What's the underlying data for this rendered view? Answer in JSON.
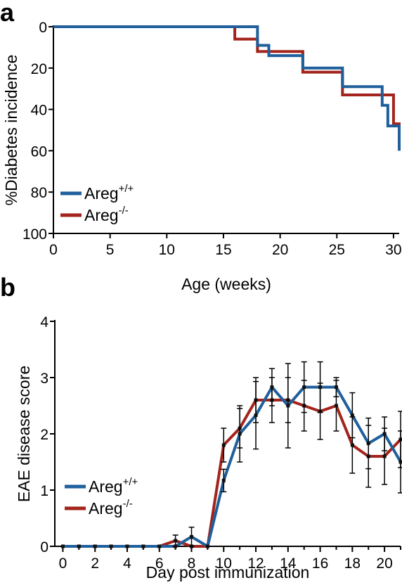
{
  "panels": {
    "a_letter": "a",
    "b_letter": "b"
  },
  "colors": {
    "wt": "#1f5f9c",
    "ko": "#a3241c",
    "axis": "#000000"
  },
  "chart_data": [
    {
      "type": "line",
      "step": true,
      "xlabel": "Age (weeks)",
      "ylabel": "%Diabetes incidence",
      "xlim": [
        0,
        30.5
      ],
      "ylim": [
        100,
        0
      ],
      "y_inverted": true,
      "x_ticks": [
        0,
        5,
        10,
        15,
        20,
        25,
        30
      ],
      "y_ticks": [
        0,
        20,
        40,
        60,
        80,
        100
      ],
      "legend": {
        "placement": "bottom-left",
        "entries": [
          {
            "base": "Areg",
            "sup": "+/+"
          },
          {
            "base": "Areg",
            "sup": "-/-"
          }
        ]
      },
      "series": [
        {
          "name": "Areg+/+",
          "color_key": "wt",
          "x": [
            0,
            18,
            18.5,
            19,
            22,
            25.5,
            29,
            29.5,
            30.5
          ],
          "y": [
            0,
            9,
            9,
            14,
            20,
            29,
            38,
            48,
            60
          ]
        },
        {
          "name": "Areg-/-",
          "color_key": "ko",
          "x": [
            0,
            16,
            18,
            19,
            22,
            25.5,
            29.5,
            30,
            30.5
          ],
          "y": [
            0,
            6,
            12,
            12,
            22,
            33,
            33,
            47,
            59
          ]
        }
      ]
    },
    {
      "type": "line",
      "xlabel": "Day post immunization",
      "ylabel": "EAE disease score",
      "xlim": [
        -0.5,
        21
      ],
      "ylim": [
        0,
        4
      ],
      "x_ticks": [
        0,
        2,
        4,
        6,
        8,
        10,
        12,
        14,
        16,
        18,
        20
      ],
      "y_ticks": [
        0,
        1,
        2,
        3,
        4
      ],
      "legend": {
        "placement": "bottom-left",
        "entries": [
          {
            "base": "Areg",
            "sup": "+/+"
          },
          {
            "base": "Areg",
            "sup": "-/-"
          }
        ]
      },
      "series": [
        {
          "name": "Areg+/+",
          "color_key": "wt",
          "x": [
            0,
            1,
            2,
            3,
            4,
            5,
            6,
            7,
            8,
            9,
            10,
            11,
            12,
            13,
            14,
            15,
            16,
            17,
            18,
            19,
            20,
            21
          ],
          "y": [
            0,
            0,
            0,
            0,
            0,
            0,
            0,
            0,
            0.17,
            0,
            1.17,
            2.0,
            2.33,
            2.83,
            2.5,
            2.83,
            2.83,
            2.83,
            2.33,
            1.83,
            2.0,
            1.5
          ],
          "err": [
            0,
            0,
            0,
            0,
            0,
            0,
            0,
            0,
            0.17,
            0,
            0.2,
            0.5,
            0.6,
            0.33,
            0.75,
            0.45,
            0.45,
            0.17,
            0.4,
            0.45,
            0.3,
            0.55
          ]
        },
        {
          "name": "Areg-/-",
          "color_key": "ko",
          "x": [
            0,
            1,
            2,
            3,
            4,
            5,
            6,
            7,
            8,
            9,
            10,
            11,
            12,
            13,
            14,
            15,
            16,
            17,
            18,
            19,
            20,
            21
          ],
          "y": [
            0,
            0,
            0,
            0,
            0,
            0,
            0,
            0.1,
            0,
            0,
            1.8,
            2.1,
            2.6,
            2.6,
            2.6,
            2.5,
            2.4,
            2.5,
            1.8,
            1.6,
            1.6,
            1.9
          ],
          "err": [
            0,
            0,
            0,
            0,
            0,
            0,
            0,
            0.1,
            0,
            0,
            0.3,
            0.35,
            0.4,
            0.4,
            0.4,
            0.45,
            0.5,
            0.45,
            0.5,
            0.55,
            0.5,
            0.5
          ]
        }
      ]
    }
  ]
}
